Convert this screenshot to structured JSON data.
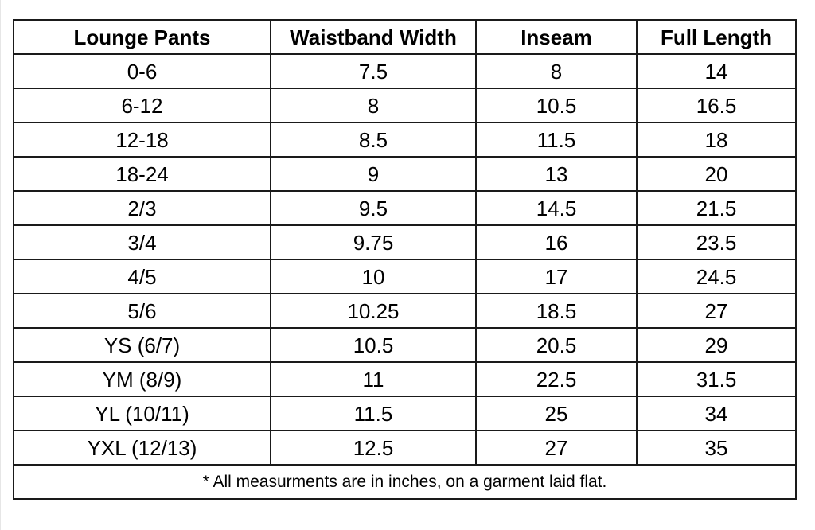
{
  "table": {
    "headers": [
      "Lounge Pants",
      "Waistband Width",
      "Inseam",
      "Full Length"
    ],
    "rows": [
      [
        "0-6",
        "7.5",
        "8",
        "14"
      ],
      [
        "6-12",
        "8",
        "10.5",
        "16.5"
      ],
      [
        "12-18",
        "8.5",
        "11.5",
        "18"
      ],
      [
        "18-24",
        "9",
        "13",
        "20"
      ],
      [
        "2/3",
        "9.5",
        "14.5",
        "21.5"
      ],
      [
        "3/4",
        "9.75",
        "16",
        "23.5"
      ],
      [
        "4/5",
        "10",
        "17",
        "24.5"
      ],
      [
        "5/6",
        "10.25",
        "18.5",
        "27"
      ],
      [
        "YS (6/7)",
        "10.5",
        "20.5",
        "29"
      ],
      [
        "YM (8/9)",
        "11",
        "22.5",
        "31.5"
      ],
      [
        "YL (10/11)",
        "11.5",
        "25",
        "34"
      ],
      [
        "YXL (12/13)",
        "12.5",
        "27",
        "35"
      ]
    ],
    "footnote": "* All measurments are in inches, on a garment laid flat."
  }
}
